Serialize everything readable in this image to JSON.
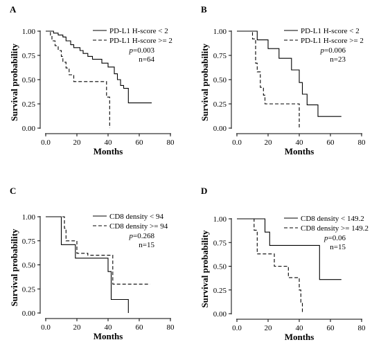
{
  "chart_data": [
    {
      "type": "line",
      "panel": "A",
      "xlabel": "Months",
      "ylabel": "Survival probability",
      "xlim": [
        0,
        80
      ],
      "ylim": [
        0,
        1
      ],
      "xticks": [
        "0.0",
        "20",
        "40",
        "60",
        "80"
      ],
      "yticks": [
        "0.00",
        "0.25",
        "0.50",
        "0.75",
        "1.00"
      ],
      "grid": false,
      "legend_position": "top-right",
      "stats": {
        "p_label": "p",
        "p_value": "=0.003",
        "n": "n=64"
      },
      "series": [
        {
          "name": "PD-L1 H-score < 2",
          "style": "solid",
          "points": [
            [
              0,
              1.0
            ],
            [
              5,
              1.0
            ],
            [
              5,
              0.98
            ],
            [
              8,
              0.98
            ],
            [
              8,
              0.96
            ],
            [
              11,
              0.96
            ],
            [
              11,
              0.94
            ],
            [
              13,
              0.94
            ],
            [
              13,
              0.9
            ],
            [
              16,
              0.9
            ],
            [
              16,
              0.86
            ],
            [
              18,
              0.86
            ],
            [
              18,
              0.83
            ],
            [
              22,
              0.83
            ],
            [
              22,
              0.8
            ],
            [
              24,
              0.8
            ],
            [
              24,
              0.77
            ],
            [
              27,
              0.77
            ],
            [
              27,
              0.74
            ],
            [
              30,
              0.74
            ],
            [
              30,
              0.71
            ],
            [
              36,
              0.71
            ],
            [
              36,
              0.67
            ],
            [
              40,
              0.67
            ],
            [
              40,
              0.63
            ],
            [
              44,
              0.63
            ],
            [
              44,
              0.56
            ],
            [
              46,
              0.56
            ],
            [
              46,
              0.5
            ],
            [
              48,
              0.5
            ],
            [
              48,
              0.44
            ],
            [
              50,
              0.44
            ],
            [
              50,
              0.41
            ],
            [
              53,
              0.41
            ],
            [
              53,
              0.26
            ],
            [
              68,
              0.26
            ]
          ]
        },
        {
          "name": "PD-L1 H-score >= 2",
          "style": "dashed",
          "points": [
            [
              0,
              1.0
            ],
            [
              3,
              1.0
            ],
            [
              3,
              0.95
            ],
            [
              4,
              0.95
            ],
            [
              4,
              0.9
            ],
            [
              6,
              0.9
            ],
            [
              6,
              0.85
            ],
            [
              8,
              0.85
            ],
            [
              8,
              0.8
            ],
            [
              10,
              0.8
            ],
            [
              10,
              0.74
            ],
            [
              11,
              0.74
            ],
            [
              11,
              0.68
            ],
            [
              13,
              0.68
            ],
            [
              13,
              0.62
            ],
            [
              15,
              0.62
            ],
            [
              15,
              0.55
            ],
            [
              18,
              0.55
            ],
            [
              18,
              0.48
            ],
            [
              39,
              0.48
            ],
            [
              39,
              0.32
            ],
            [
              41,
              0.32
            ],
            [
              41,
              0.0
            ]
          ]
        }
      ]
    },
    {
      "type": "line",
      "panel": "B",
      "xlabel": "Months",
      "ylabel": "Survival probability",
      "xlim": [
        0,
        80
      ],
      "ylim": [
        0,
        1
      ],
      "xticks": [
        "0.0",
        "20",
        "40",
        "60",
        "80"
      ],
      "yticks": [
        "0.00",
        "0.25",
        "0.50",
        "0.75",
        "1.00"
      ],
      "grid": false,
      "legend_position": "top-right",
      "stats": {
        "p_label": "p",
        "p_value": "=0.006",
        "n": "n=23"
      },
      "series": [
        {
          "name": "PD-L1 H-score < 2",
          "style": "solid",
          "points": [
            [
              0,
              1.0
            ],
            [
              13,
              1.0
            ],
            [
              13,
              0.91
            ],
            [
              20,
              0.91
            ],
            [
              20,
              0.82
            ],
            [
              27,
              0.82
            ],
            [
              27,
              0.72
            ],
            [
              35,
              0.72
            ],
            [
              35,
              0.6
            ],
            [
              40,
              0.6
            ],
            [
              40,
              0.47
            ],
            [
              42,
              0.47
            ],
            [
              42,
              0.35
            ],
            [
              45,
              0.35
            ],
            [
              45,
              0.24
            ],
            [
              52,
              0.24
            ],
            [
              52,
              0.12
            ],
            [
              67,
              0.12
            ]
          ]
        },
        {
          "name": "PD-L1 H-score >= 2",
          "style": "dashed",
          "points": [
            [
              0,
              1.0
            ],
            [
              10,
              1.0
            ],
            [
              10,
              0.92
            ],
            [
              12,
              0.92
            ],
            [
              12,
              0.67
            ],
            [
              13,
              0.67
            ],
            [
              13,
              0.58
            ],
            [
              15,
              0.58
            ],
            [
              15,
              0.42
            ],
            [
              17,
              0.42
            ],
            [
              17,
              0.34
            ],
            [
              18,
              0.34
            ],
            [
              18,
              0.25
            ],
            [
              40,
              0.25
            ],
            [
              40,
              0.0
            ]
          ]
        }
      ]
    },
    {
      "type": "line",
      "panel": "C",
      "xlabel": "Months",
      "ylabel": "Survival probability",
      "xlim": [
        0,
        80
      ],
      "ylim": [
        0,
        1
      ],
      "xticks": [
        "0.0",
        "20",
        "40",
        "60",
        "80"
      ],
      "yticks": [
        "0.00",
        "0.25",
        "0.50",
        "0.75",
        "1.00"
      ],
      "grid": false,
      "legend_position": "top-right",
      "stats": {
        "p_label": "p",
        "p_value": "=0.268",
        "n": "n=15"
      },
      "series": [
        {
          "name": "CD8 density < 94",
          "style": "solid",
          "points": [
            [
              0,
              1.0
            ],
            [
              10,
              1.0
            ],
            [
              10,
              0.71
            ],
            [
              19,
              0.71
            ],
            [
              19,
              0.57
            ],
            [
              40,
              0.57
            ],
            [
              40,
              0.43
            ],
            [
              42,
              0.43
            ],
            [
              42,
              0.14
            ],
            [
              53,
              0.14
            ],
            [
              53,
              0.0
            ]
          ]
        },
        {
          "name": "CD8 density >= 94",
          "style": "dashed",
          "points": [
            [
              0,
              1.0
            ],
            [
              12,
              1.0
            ],
            [
              12,
              0.88
            ],
            [
              13,
              0.88
            ],
            [
              13,
              0.75
            ],
            [
              20,
              0.75
            ],
            [
              20,
              0.62
            ],
            [
              27,
              0.62
            ],
            [
              27,
              0.6
            ],
            [
              43,
              0.6
            ],
            [
              43,
              0.3
            ],
            [
              67,
              0.3
            ]
          ]
        }
      ]
    },
    {
      "type": "line",
      "panel": "D",
      "xlabel": "Months",
      "ylabel": "Survival probability",
      "xlim": [
        0,
        80
      ],
      "ylim": [
        0,
        1
      ],
      "xticks": [
        "0.0",
        "20",
        "40",
        "60",
        "80"
      ],
      "yticks": [
        "0.00",
        "0.25",
        "0.50",
        "0.75",
        "1.00"
      ],
      "grid": false,
      "legend_position": "top-right",
      "stats": {
        "p_label": "p",
        "p_value": "=0.06",
        "n": "n=15"
      },
      "series": [
        {
          "name": "CD8 density < 149.2",
          "style": "solid",
          "points": [
            [
              0,
              1.0
            ],
            [
              18,
              1.0
            ],
            [
              18,
              0.86
            ],
            [
              21,
              0.86
            ],
            [
              21,
              0.72
            ],
            [
              53,
              0.72
            ],
            [
              53,
              0.36
            ],
            [
              67,
              0.36
            ]
          ]
        },
        {
          "name": "CD8 density >= 149.2",
          "style": "dashed",
          "points": [
            [
              0,
              1.0
            ],
            [
              11,
              1.0
            ],
            [
              11,
              0.88
            ],
            [
              13,
              0.88
            ],
            [
              13,
              0.63
            ],
            [
              24,
              0.63
            ],
            [
              24,
              0.5
            ],
            [
              33,
              0.5
            ],
            [
              33,
              0.38
            ],
            [
              40,
              0.38
            ],
            [
              40,
              0.25
            ],
            [
              41,
              0.25
            ],
            [
              41,
              0.12
            ],
            [
              42,
              0.12
            ],
            [
              42,
              0.0
            ]
          ]
        }
      ]
    }
  ]
}
